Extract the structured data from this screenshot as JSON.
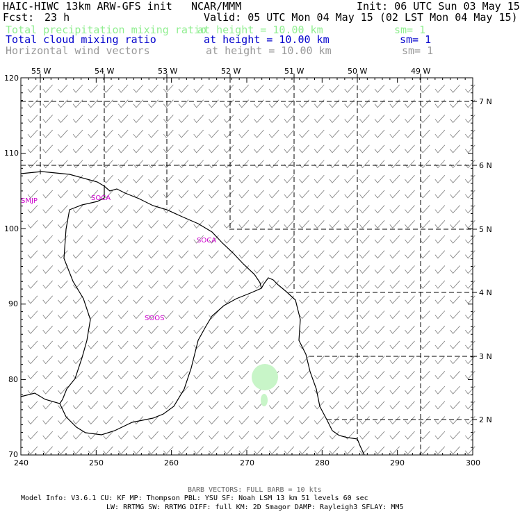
{
  "header": {
    "title": "HAIC-HIWC 13km ARW-GFS init",
    "org": "NCAR/MMM",
    "init": "Init: 06 UTC Sun 03 May 15",
    "fcst_label": "Fcst:",
    "fcst_value": "23 h",
    "valid": "Valid: 05 UTC Mon 04 May 15 (02 LST Mon 04 May 15)"
  },
  "fields": [
    {
      "name": "Total precipitation mixing ratio",
      "height": "at height = 10.00 km",
      "sm": "sm= 1",
      "color": "#90ee90"
    },
    {
      "name": "Total cloud mixing ratio",
      "height": "at height = 10.00 km",
      "sm": "sm= 1",
      "color": "#0000cc"
    },
    {
      "name": "Horizontal wind vectors",
      "height": "at height = 10.00 km",
      "sm": "sm= 1",
      "color": "#999999"
    }
  ],
  "axes": {
    "left_ticks": [
      "120",
      "110",
      "100",
      "90",
      "80",
      "70"
    ],
    "bottom_ticks": [
      "240",
      "250",
      "260",
      "270",
      "280",
      "290",
      "300"
    ],
    "top_lon_labels": [
      "55 W",
      "54 W",
      "53 W",
      "52 W",
      "51 W",
      "50 W",
      "49 W"
    ],
    "right_lat_labels": [
      "7 N",
      "6 N",
      "5 N",
      "4 N",
      "3 N",
      "2 N"
    ]
  },
  "stations": [
    "SMJP",
    "SOCA",
    "SOCA",
    "SOOS"
  ],
  "footer": {
    "barb_note": "BARB VECTORS:  FULL BARB = 10 kts",
    "model_line1": "Model Info: V3.6.1    CU: KF      MP: Thompson    PBL: YSU      SF: Noah LSM     13 km    51 levels   60 sec",
    "model_line2": "LW: RRTMG   SW: RRTMG  DIFF: full   KM: 2D Smagor DAMP: Rayleigh3  SFLAY: MM5"
  },
  "colors": {
    "station": "#cc00cc",
    "coast": "#000000",
    "grid_dash": "#000000",
    "barb": "#888888",
    "precip": "#90ee90"
  }
}
